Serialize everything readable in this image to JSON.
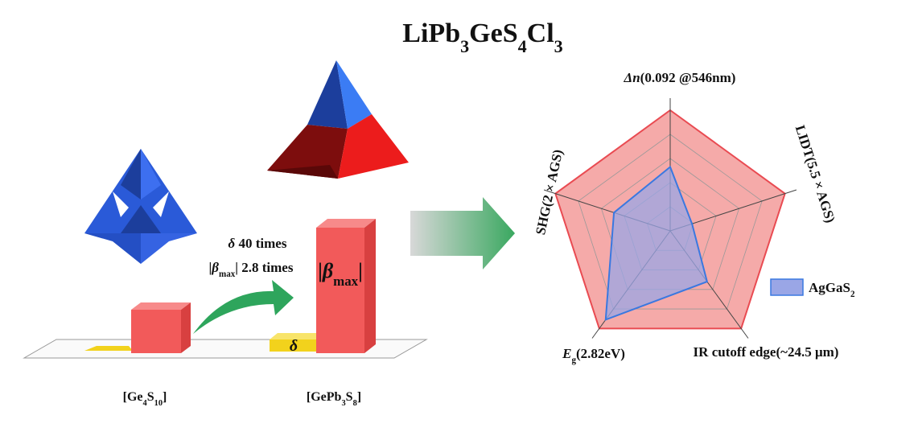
{
  "title": [
    [
      "LiPb",
      "n"
    ],
    [
      "3",
      "sub"
    ],
    [
      "GeS",
      "n"
    ],
    [
      "4",
      "sub"
    ],
    [
      "Cl",
      "n"
    ],
    [
      "3",
      "sub"
    ]
  ],
  "left": {
    "delta_note": [
      [
        "δ",
        "i"
      ],
      [
        "   40 times",
        "n"
      ]
    ],
    "beta_note": [
      [
        "|",
        "n"
      ],
      [
        "β",
        "i"
      ],
      [
        "max",
        "sub"
      ],
      [
        "| 2.8 times",
        "n"
      ]
    ],
    "beta_bar": [
      [
        "|",
        "n"
      ],
      [
        "β",
        "i"
      ],
      [
        "max",
        "sub"
      ],
      [
        "|",
        "n"
      ]
    ],
    "delta_bar": [
      [
        "δ",
        "i"
      ]
    ],
    "ge4s10": [
      [
        "[Ge",
        "n"
      ],
      [
        "4",
        "sub"
      ],
      [
        "S",
        "n"
      ],
      [
        "10",
        "sub"
      ],
      [
        "]",
        "n"
      ]
    ],
    "gepb3s8": [
      [
        "[GePb",
        "n"
      ],
      [
        "3",
        "sub"
      ],
      [
        "S",
        "n"
      ],
      [
        "8",
        "sub"
      ],
      [
        "]",
        "n"
      ]
    ]
  },
  "radar": {
    "rlim": [
      0,
      1
    ],
    "axes": [
      [
        [
          "Δn",
          "i"
        ],
        [
          "(0.092 @546nm)",
          "n"
        ]
      ],
      [
        [
          "LIDT(5.5 × AGS)",
          "n"
        ]
      ],
      [
        [
          "IR cutoff edge(~24.5 μm)",
          "n"
        ]
      ],
      [
        [
          "E",
          "i"
        ],
        [
          "g",
          "sub"
        ],
        [
          "(2.82eV)",
          "n"
        ]
      ],
      [
        [
          "SHG(2 × AGS)",
          "n"
        ]
      ]
    ],
    "series": [
      {
        "color": "#e94b52",
        "fill": "#f5aaa9",
        "values": [
          1,
          1,
          1,
          1,
          1
        ]
      },
      {
        "color": "#3a78e0",
        "fill": "#9aa6e6",
        "values": [
          0.53,
          0.19,
          0.52,
          0.91,
          0.49
        ]
      }
    ],
    "legend": [
      [
        "AgGaS",
        "n"
      ],
      [
        "2",
        "sub"
      ]
    ]
  }
}
